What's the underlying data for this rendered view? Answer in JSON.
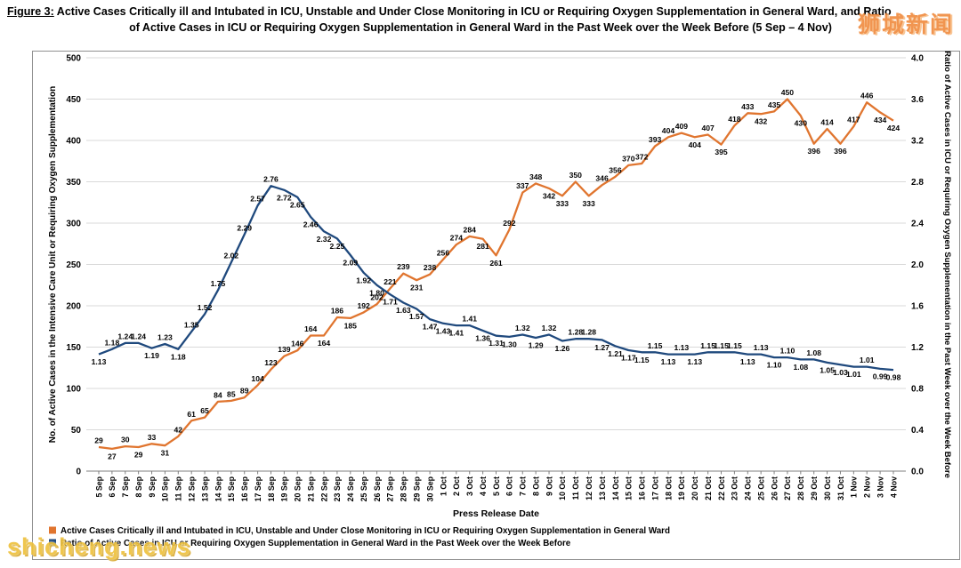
{
  "figure": {
    "label": "Figure 3:",
    "title_line1_rest": " Active Cases Critically ill and Intubated in ICU, Unstable and Under Close Monitoring in ICU or Requiring Oxygen Supplementation in General Ward, and Ratio",
    "title_line2": "of Active Cases in ICU or Requiring Oxygen Supplementation in General Ward in the Past Week over the Week Before (5 Sep – 4 Nov)"
  },
  "watermarks": {
    "top_right": "狮城新闻",
    "bottom_left": "shicheng.news"
  },
  "chart_data": {
    "type": "line",
    "title": "Figure 3: Active Cases Critically ill and Intubated in ICU, Unstable and Under Close Monitoring in ICU or Requiring Oxygen Supplementation in General Ward, and Ratio of Active Cases in ICU or Requiring Oxygen Supplementation in General Ward in the Past Week over the Week Before (5 Sep – 4 Nov)",
    "xlabel": "Press Release Date",
    "ylabel_left": "No. of Active Cases in the Intensive Care Unit or Requiring Oxygen Supplementation",
    "ylabel_right": "Ratio of Active Cases in ICU or Requiring Oxygen Supplementation in the Past Week over the Week Before",
    "ylim_left": [
      0,
      500
    ],
    "yticks_left": [
      0,
      50,
      100,
      150,
      200,
      250,
      300,
      350,
      400,
      450,
      500
    ],
    "ylim_right": [
      0,
      4.0
    ],
    "yticks_right": [
      "0.0",
      "0.4",
      "0.8",
      "1.2",
      "1.6",
      "2.0",
      "2.4",
      "2.8",
      "3.2",
      "3.6",
      "4.0"
    ],
    "grid": true,
    "legend_position": "bottom-left",
    "x": [
      "5 Sep",
      "6 Sep",
      "7 Sep",
      "8 Sep",
      "9 Sep",
      "10 Sep",
      "11 Sep",
      "12 Sep",
      "13 Sep",
      "14 Sep",
      "15 Sep",
      "16 Sep",
      "17 Sep",
      "18 Sep",
      "19 Sep",
      "20 Sep",
      "21 Sep",
      "22 Sep",
      "23 Sep",
      "24 Sep",
      "25 Sep",
      "26 Sep",
      "27 Sep",
      "28 Sep",
      "29 Sep",
      "30 Sep",
      "1 Oct",
      "2 Oct",
      "3 Oct",
      "4 Oct",
      "5 Oct",
      "6 Oct",
      "7 Oct",
      "8 Oct",
      "9 Oct",
      "10 Oct",
      "11 Oct",
      "12 Oct",
      "13 Oct",
      "14 Oct",
      "15 Oct",
      "16 Oct",
      "17 Oct",
      "18 Oct",
      "19 Oct",
      "20 Oct",
      "21 Oct",
      "22 Oct",
      "23 Oct",
      "24 Oct",
      "25 Oct",
      "26 Oct",
      "27 Oct",
      "28 Oct",
      "29 Oct",
      "30 Oct",
      "31 Oct",
      "1 Nov",
      "2 Nov",
      "3 Nov",
      "4 Nov"
    ],
    "series": [
      {
        "name": "Active Cases Critically ill and Intubated in ICU, Unstable and Under Close Monitoring in ICU or Requiring Oxygen Supplementation in General Ward",
        "axis": "left",
        "color": "#E0752F",
        "label_decimals": 0,
        "values": [
          29,
          27,
          30,
          29,
          33,
          31,
          42,
          61,
          65,
          84,
          85,
          89,
          104,
          123,
          139,
          146,
          164,
          164,
          186,
          185,
          192,
          202,
          221,
          239,
          231,
          238,
          256,
          274,
          284,
          281,
          261,
          292,
          337,
          348,
          342,
          333,
          350,
          333,
          346,
          356,
          370,
          372,
          393,
          404,
          409,
          404,
          407,
          395,
          418,
          433,
          432,
          435,
          450,
          430,
          396,
          414,
          396,
          417,
          446,
          434,
          424
        ]
      },
      {
        "name": "Ratio of Active Cases in ICU or Requiring Oxygen Supplementation in General Ward in the Past Week over the Week Before",
        "axis": "right",
        "color": "#1F497D",
        "label_decimals": 2,
        "values": [
          1.13,
          1.18,
          1.24,
          1.24,
          1.19,
          1.23,
          1.18,
          1.35,
          1.52,
          1.75,
          2.02,
          2.29,
          2.57,
          2.76,
          2.72,
          2.65,
          2.46,
          2.32,
          2.25,
          2.09,
          1.92,
          1.8,
          1.71,
          1.63,
          1.57,
          1.47,
          1.43,
          1.41,
          1.41,
          1.36,
          1.31,
          1.3,
          1.32,
          1.29,
          1.32,
          1.26,
          1.28,
          1.28,
          1.27,
          1.21,
          1.17,
          1.15,
          1.15,
          1.13,
          1.13,
          1.13,
          1.15,
          1.15,
          1.15,
          1.13,
          1.13,
          1.1,
          1.1,
          1.08,
          1.08,
          1.05,
          1.03,
          1.01,
          1.01,
          0.99,
          0.98
        ]
      }
    ]
  }
}
